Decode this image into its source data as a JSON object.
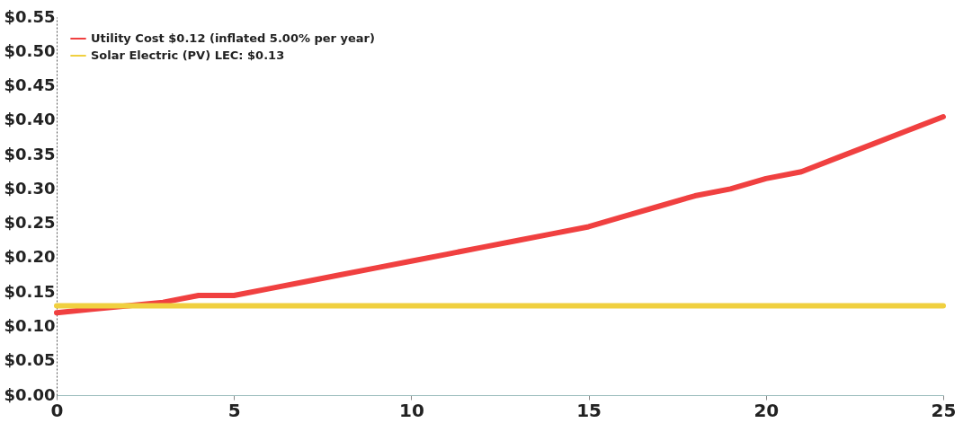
{
  "chart_data": {
    "type": "line",
    "x": [
      0,
      1,
      2,
      3,
      4,
      5,
      6,
      7,
      8,
      9,
      10,
      11,
      12,
      13,
      14,
      15,
      16,
      17,
      18,
      19,
      20,
      21,
      22,
      23,
      24,
      25
    ],
    "series": [
      {
        "name": "Utility Cost  $0.12 (inflated 5.00% per year)",
        "color": "#f04040",
        "values": [
          0.12,
          0.125,
          0.13,
          0.135,
          0.145,
          0.145,
          0.155,
          0.165,
          0.175,
          0.185,
          0.195,
          0.205,
          0.215,
          0.225,
          0.235,
          0.245,
          0.26,
          0.275,
          0.29,
          0.3,
          0.315,
          0.325,
          0.345,
          0.365,
          0.385,
          0.405
        ]
      },
      {
        "name": "Solar Electric (PV) LEC: $0.13",
        "color": "#f0d040",
        "values": [
          0.13,
          0.13,
          0.13,
          0.13,
          0.13,
          0.13,
          0.13,
          0.13,
          0.13,
          0.13,
          0.13,
          0.13,
          0.13,
          0.13,
          0.13,
          0.13,
          0.13,
          0.13,
          0.13,
          0.13,
          0.13,
          0.13,
          0.13,
          0.13,
          0.13,
          0.13
        ]
      }
    ],
    "xlim": [
      0,
      25
    ],
    "xticks": [
      0,
      5,
      10,
      15,
      20,
      25
    ],
    "ylim": [
      0,
      0.55
    ],
    "yticks": [
      {
        "value": 0,
        "label": "$0.00"
      },
      {
        "value": 0.05,
        "label": "$0.05"
      },
      {
        "value": 0.1,
        "label": "$0.10"
      },
      {
        "value": 0.15,
        "label": "$0.15"
      },
      {
        "value": 0.2,
        "label": "$0.20"
      },
      {
        "value": 0.25,
        "label": "$0.25"
      },
      {
        "value": 0.3,
        "label": "$0.30"
      },
      {
        "value": 0.35,
        "label": "$0.35"
      },
      {
        "value": 0.4,
        "label": "$0.40"
      },
      {
        "value": 0.45,
        "label": "$0.45"
      },
      {
        "value": 0.5,
        "label": "$0.50"
      },
      {
        "value": 0.55,
        "label": "$0.55"
      }
    ],
    "grid": false,
    "legend": "top left",
    "marker": "none",
    "line_style": "solid"
  }
}
